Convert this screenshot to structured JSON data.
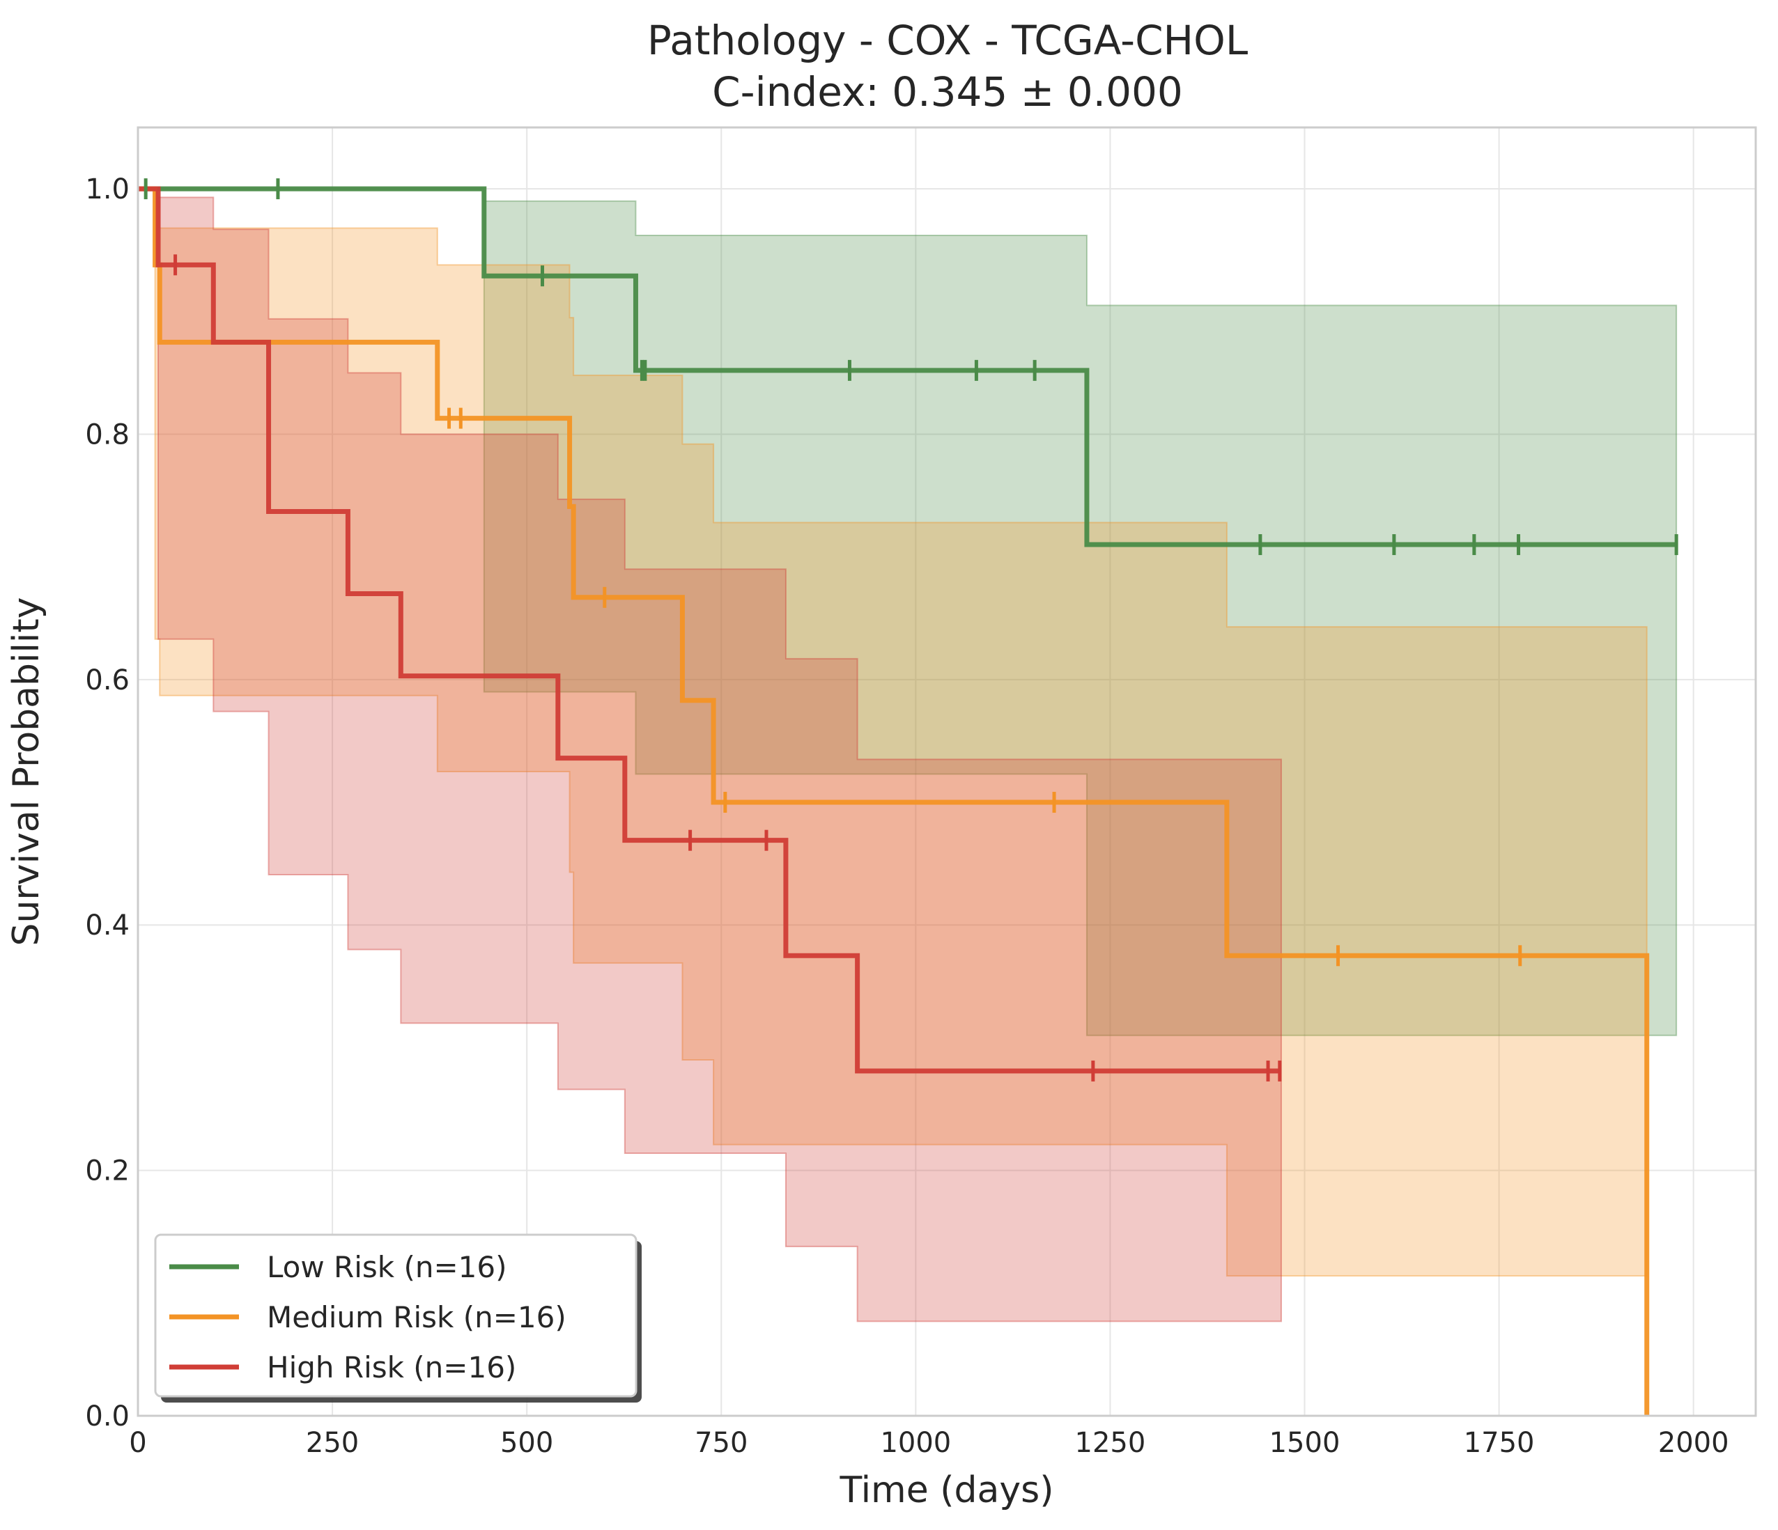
{
  "chart_data": {
    "type": "line",
    "title": "Pathology - COX - TCGA-CHOL",
    "subtitle": "C-index: 0.345 ± 0.000",
    "xlabel": "Time (days)",
    "ylabel": "Survival Probability",
    "xlim": [
      0,
      2080
    ],
    "ylim": [
      0,
      1.05
    ],
    "xticks": [
      0,
      250,
      500,
      750,
      1000,
      1250,
      1500,
      1750,
      2000
    ],
    "xtick_labels": [
      "0",
      "250",
      "500",
      "750",
      "1000",
      "1250",
      "1500",
      "1750",
      "2000"
    ],
    "yticks": [
      0.0,
      0.2,
      0.4,
      0.6,
      0.8,
      1.0
    ],
    "ytick_labels": [
      "0.0",
      "0.2",
      "0.4",
      "0.6",
      "0.8",
      "1.0"
    ],
    "grid": true,
    "legend_position": "lower-left",
    "series": [
      {
        "name": "Low Risk (n=16)",
        "color": "#4a8b48",
        "steps": [
          [
            0,
            1.0
          ],
          [
            445,
            0.929
          ],
          [
            640,
            0.852
          ],
          [
            1220,
            0.71
          ]
        ],
        "end_time": 1978,
        "ci": [
          [
            0,
            1.0,
            1.0
          ],
          [
            445,
            0.99,
            0.59
          ],
          [
            640,
            0.962,
            0.523
          ],
          [
            1220,
            0.905,
            0.31
          ],
          [
            1978,
            0.905,
            0.31
          ]
        ],
        "censor_times": [
          10,
          180,
          520,
          648,
          652,
          915,
          1078,
          1153,
          1443,
          1615,
          1718,
          1775,
          1978
        ]
      },
      {
        "name": "Medium Risk (n=16)",
        "color": "#f39325",
        "steps": [
          [
            0,
            1.0
          ],
          [
            22,
            0.938
          ],
          [
            28,
            0.875
          ],
          [
            385,
            0.813
          ],
          [
            555,
            0.741
          ],
          [
            560,
            0.667
          ],
          [
            700,
            0.583
          ],
          [
            740,
            0.5
          ],
          [
            1400,
            0.375
          ],
          [
            1940,
            0.0
          ]
        ],
        "end_time": 1940,
        "ci": [
          [
            0,
            1.0,
            1.0
          ],
          [
            22,
            0.99,
            0.633
          ],
          [
            28,
            0.968,
            0.587
          ],
          [
            385,
            0.938,
            0.525
          ],
          [
            555,
            0.895,
            0.443
          ],
          [
            560,
            0.848,
            0.369
          ],
          [
            700,
            0.792,
            0.29
          ],
          [
            740,
            0.728,
            0.221
          ],
          [
            1400,
            0.643,
            0.114
          ],
          [
            1940,
            0.643,
            0.114
          ]
        ],
        "censor_times": [
          400,
          415,
          600,
          755,
          1178,
          1543,
          1777
        ]
      },
      {
        "name": "High Risk (n=16)",
        "color": "#d03d36",
        "steps": [
          [
            0,
            1.0
          ],
          [
            26,
            0.938
          ],
          [
            97,
            0.875
          ],
          [
            168,
            0.737
          ],
          [
            270,
            0.67
          ],
          [
            338,
            0.603
          ],
          [
            540,
            0.536
          ],
          [
            626,
            0.469
          ],
          [
            833,
            0.375
          ],
          [
            925,
            0.281
          ]
        ],
        "end_time": 1470,
        "ci": [
          [
            0,
            1.0,
            1.0
          ],
          [
            26,
            0.993,
            0.633
          ],
          [
            97,
            0.967,
            0.574
          ],
          [
            168,
            0.894,
            0.441
          ],
          [
            270,
            0.85,
            0.38
          ],
          [
            338,
            0.8,
            0.32
          ],
          [
            540,
            0.747,
            0.266
          ],
          [
            626,
            0.69,
            0.214
          ],
          [
            833,
            0.617,
            0.138
          ],
          [
            925,
            0.535,
            0.077
          ],
          [
            1470,
            0.535,
            0.077
          ]
        ],
        "censor_times": [
          48,
          710,
          808,
          1228,
          1453,
          1468
        ]
      }
    ]
  }
}
